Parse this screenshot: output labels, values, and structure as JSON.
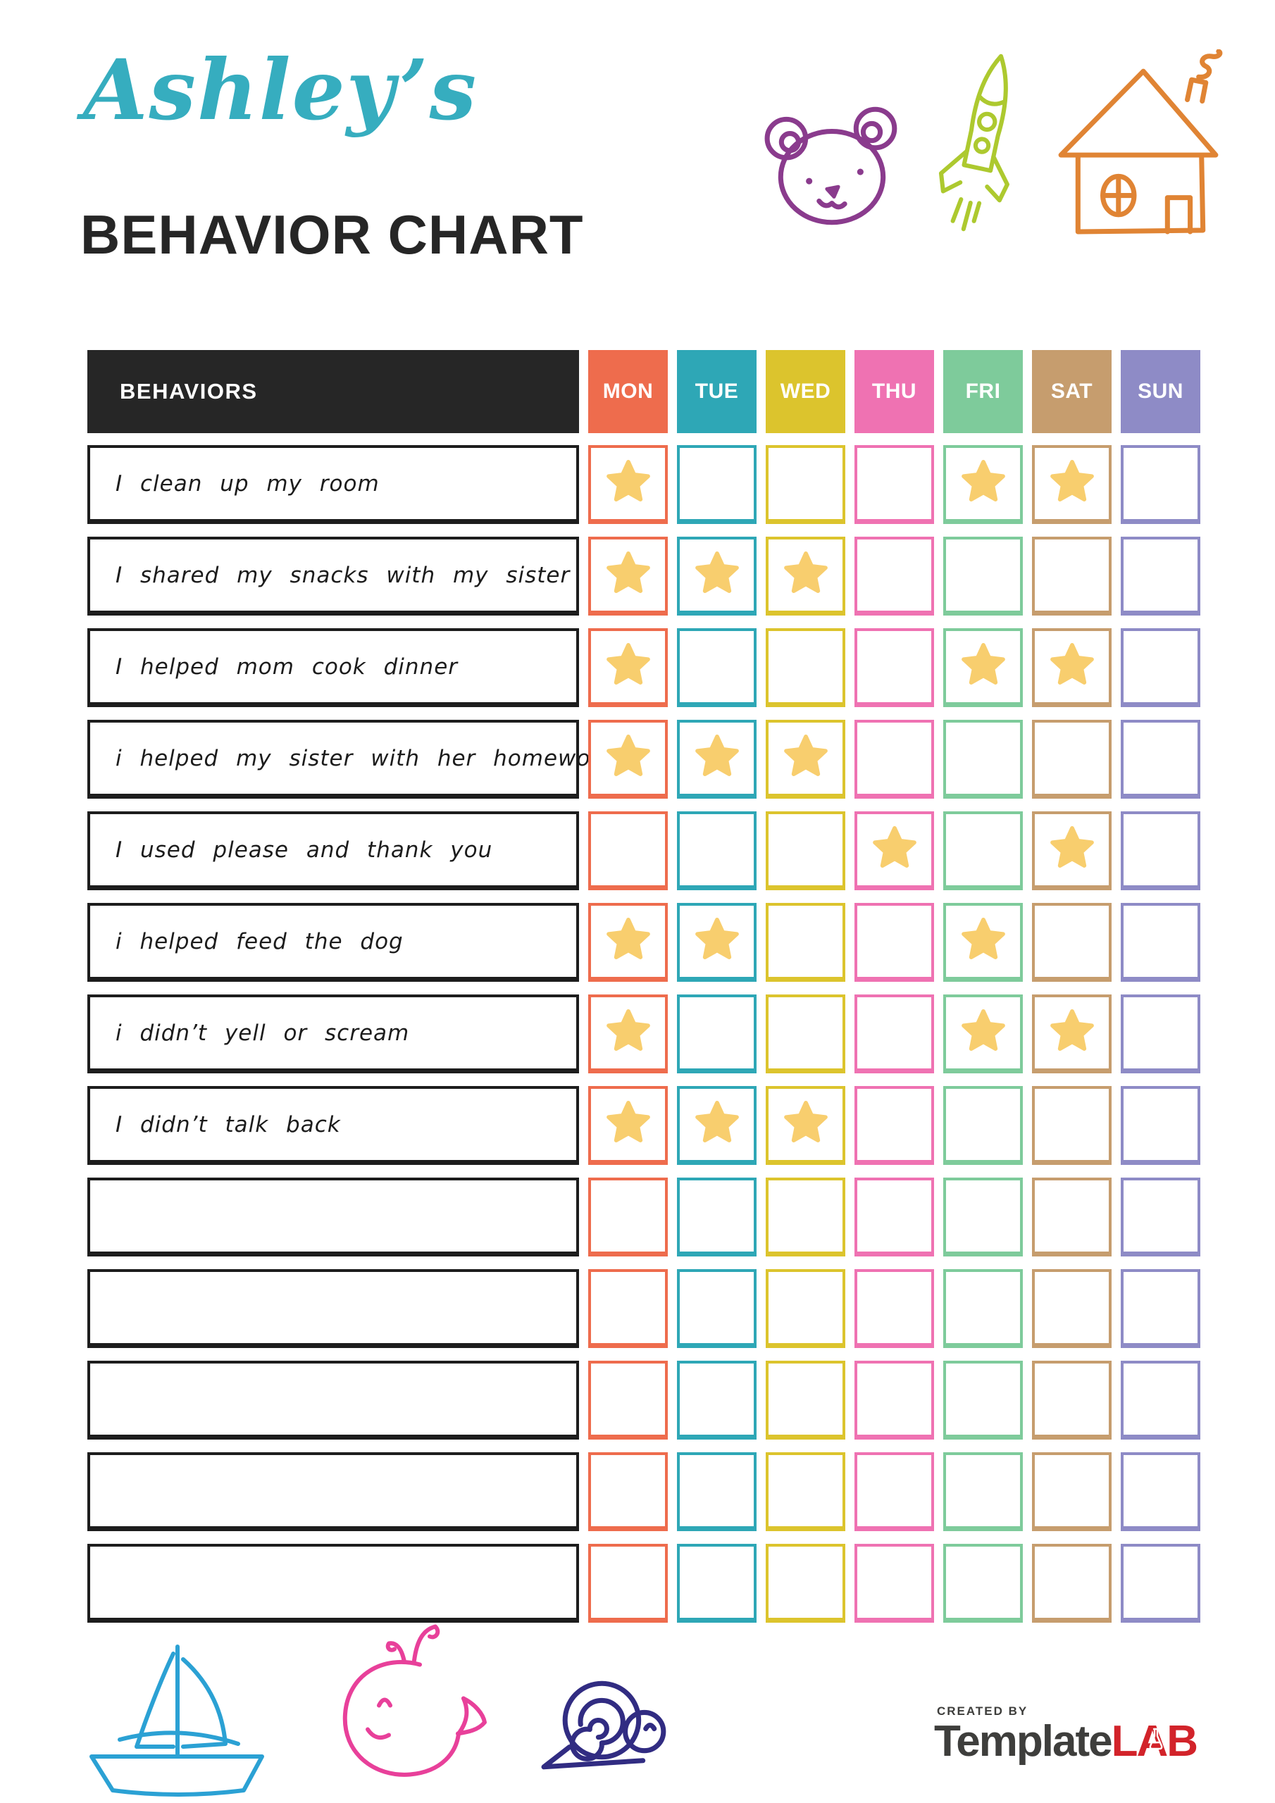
{
  "title": {
    "name_script": "Ashley’s",
    "main": "BEHAVIOR CHART"
  },
  "decorations": {
    "top_icons": [
      "bear-doodle-icon",
      "rocket-doodle-icon",
      "house-doodle-icon"
    ],
    "bottom_icons": [
      "sailboat-doodle-icon",
      "whale-doodle-icon",
      "snail-doodle-icon"
    ]
  },
  "colors": {
    "title_script": "#36ADBF",
    "title_main": "#262626",
    "header_bg": "#262626",
    "row_border": "#1d1d1d",
    "star": "#F8CE6E",
    "doodle_bear": "#8A3B8D",
    "doodle_rocket": "#ADC92F",
    "doodle_house": "#E08434",
    "doodle_boat": "#2BA1D4",
    "doodle_whale": "#E8409A",
    "doodle_snail": "#312C82",
    "logo_dark": "#3e3e3c",
    "logo_red": "#D2232A"
  },
  "table": {
    "behaviors_header": "BEHAVIORS",
    "days": [
      {
        "label": "MON",
        "color": "#EE6C4D"
      },
      {
        "label": "TUE",
        "color": "#2EA7B6"
      },
      {
        "label": "WED",
        "color": "#DCC42D"
      },
      {
        "label": "THU",
        "color": "#EF72B2"
      },
      {
        "label": "FRI",
        "color": "#7ECB9B"
      },
      {
        "label": "SAT",
        "color": "#C69D6E"
      },
      {
        "label": "SUN",
        "color": "#8E8BC6"
      }
    ],
    "rows": [
      {
        "label": "I clean up my room",
        "stars": [
          1,
          0,
          0,
          0,
          1,
          1,
          0
        ]
      },
      {
        "label": "I shared my snacks with my sister",
        "stars": [
          1,
          1,
          1,
          0,
          0,
          0,
          0
        ]
      },
      {
        "label": "I helped mom cook dinner",
        "stars": [
          1,
          0,
          0,
          0,
          1,
          1,
          0
        ]
      },
      {
        "label": "i helped my sister with her homework",
        "stars": [
          1,
          1,
          1,
          0,
          0,
          0,
          0
        ]
      },
      {
        "label": "I used please and thank you",
        "stars": [
          0,
          0,
          0,
          1,
          0,
          1,
          0
        ]
      },
      {
        "label": "i helped feed the dog",
        "stars": [
          1,
          1,
          0,
          0,
          1,
          0,
          0
        ]
      },
      {
        "label": "i didn’t yell or scream",
        "stars": [
          1,
          0,
          0,
          0,
          1,
          1,
          0
        ]
      },
      {
        "label": "I didn’t talk back",
        "stars": [
          1,
          1,
          1,
          0,
          0,
          0,
          0
        ]
      },
      {
        "label": "",
        "stars": [
          0,
          0,
          0,
          0,
          0,
          0,
          0
        ]
      },
      {
        "label": "",
        "stars": [
          0,
          0,
          0,
          0,
          0,
          0,
          0
        ]
      },
      {
        "label": "",
        "stars": [
          0,
          0,
          0,
          0,
          0,
          0,
          0
        ]
      },
      {
        "label": "",
        "stars": [
          0,
          0,
          0,
          0,
          0,
          0,
          0
        ]
      },
      {
        "label": "",
        "stars": [
          0,
          0,
          0,
          0,
          0,
          0,
          0
        ]
      }
    ]
  },
  "logo": {
    "created_by": "CREATED BY",
    "brand_dark": "Template",
    "brand_red": "LAB"
  }
}
